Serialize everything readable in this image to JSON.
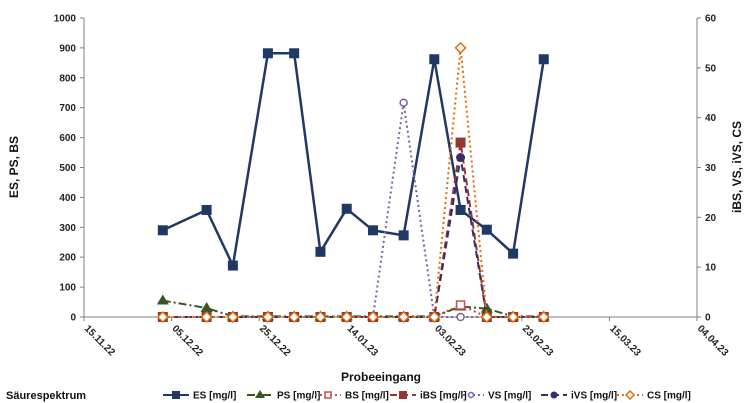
{
  "chart_data": {
    "type": "line",
    "caption": "Säurespektrum",
    "xlabel": "Probeeingang",
    "ylabel": "ES, PS, BS",
    "y2label": "iBS, VS, iVS, CS",
    "xlim": [
      "2022-11-15",
      "2023-04-04"
    ],
    "x_ticks": [
      "15.11.22",
      "05.12.22",
      "25.12.22",
      "14.01.23",
      "03.02.23",
      "23.02.23",
      "15.03.23",
      "04.04.23"
    ],
    "ylim": [
      0,
      1000
    ],
    "y_ticks": [
      0,
      100,
      200,
      300,
      400,
      500,
      600,
      700,
      800,
      900,
      1000
    ],
    "y2lim": [
      0,
      60
    ],
    "y2_ticks": [
      0,
      10,
      20,
      30,
      40,
      50,
      60
    ],
    "grid": false,
    "legend_position": "bottom",
    "series": [
      {
        "name": "ES [mg/l]",
        "axis": "left",
        "color": "#1f3864",
        "marker": "square",
        "dash": "solid",
        "points": [
          [
            "2022-12-03",
            290
          ],
          [
            "2022-12-13",
            358
          ],
          [
            "2022-12-19",
            172
          ],
          [
            "2022-12-27",
            882
          ],
          [
            "2023-01-02",
            882
          ],
          [
            "2023-01-08",
            218
          ],
          [
            "2023-01-14",
            362
          ],
          [
            "2023-01-20",
            290
          ],
          [
            "2023-01-27",
            273
          ],
          [
            "2023-02-03",
            862
          ],
          [
            "2023-02-09",
            358
          ],
          [
            "2023-02-15",
            292
          ],
          [
            "2023-02-21",
            212
          ],
          [
            "2023-02-28",
            862
          ]
        ]
      },
      {
        "name": "PS [mg/l]",
        "axis": "left",
        "color": "#375623",
        "marker": "triangle",
        "dash": "dashdot",
        "points": [
          [
            "2022-12-03",
            55
          ],
          [
            "2022-12-13",
            30
          ],
          [
            "2022-12-19",
            2
          ],
          [
            "2022-12-27",
            2
          ],
          [
            "2023-01-02",
            2
          ],
          [
            "2023-01-08",
            2
          ],
          [
            "2023-01-14",
            2
          ],
          [
            "2023-01-20",
            2
          ],
          [
            "2023-01-27",
            2
          ],
          [
            "2023-02-03",
            2
          ],
          [
            "2023-02-09",
            35
          ],
          [
            "2023-02-15",
            28
          ],
          [
            "2023-02-21",
            2
          ],
          [
            "2023-02-28",
            2
          ]
        ]
      },
      {
        "name": "BS [mg/l]",
        "axis": "left",
        "color": "#c0504d",
        "marker": "square-open",
        "dash": "dotted",
        "points": [
          [
            "2022-12-03",
            0
          ],
          [
            "2022-12-13",
            0
          ],
          [
            "2022-12-19",
            0
          ],
          [
            "2022-12-27",
            0
          ],
          [
            "2023-01-02",
            0
          ],
          [
            "2023-01-08",
            0
          ],
          [
            "2023-01-14",
            0
          ],
          [
            "2023-01-20",
            0
          ],
          [
            "2023-01-27",
            0
          ],
          [
            "2023-02-03",
            0
          ],
          [
            "2023-02-09",
            40
          ],
          [
            "2023-02-15",
            0
          ],
          [
            "2023-02-21",
            0
          ],
          [
            "2023-02-28",
            0
          ]
        ]
      },
      {
        "name": "iBS [mg/l]",
        "axis": "right",
        "color": "#943634",
        "marker": "square",
        "dash": "dashed",
        "points": [
          [
            "2022-12-03",
            0
          ],
          [
            "2022-12-13",
            0
          ],
          [
            "2022-12-19",
            0
          ],
          [
            "2022-12-27",
            0
          ],
          [
            "2023-01-02",
            0
          ],
          [
            "2023-01-08",
            0
          ],
          [
            "2023-01-14",
            0
          ],
          [
            "2023-01-20",
            0
          ],
          [
            "2023-01-27",
            0
          ],
          [
            "2023-02-03",
            0
          ],
          [
            "2023-02-09",
            35
          ],
          [
            "2023-02-15",
            0
          ],
          [
            "2023-02-21",
            0
          ],
          [
            "2023-02-28",
            0
          ]
        ]
      },
      {
        "name": "VS [mg/l]",
        "axis": "right",
        "color": "#7f5fa6",
        "marker": "circle-open",
        "dash": "dotted",
        "points": [
          [
            "2022-12-03",
            0
          ],
          [
            "2022-12-13",
            0
          ],
          [
            "2022-12-19",
            0
          ],
          [
            "2022-12-27",
            0
          ],
          [
            "2023-01-02",
            0
          ],
          [
            "2023-01-08",
            0
          ],
          [
            "2023-01-14",
            0
          ],
          [
            "2023-01-20",
            0
          ],
          [
            "2023-01-27",
            43
          ],
          [
            "2023-02-03",
            0
          ],
          [
            "2023-02-09",
            0
          ],
          [
            "2023-02-15",
            0
          ],
          [
            "2023-02-21",
            0
          ],
          [
            "2023-02-28",
            0
          ]
        ]
      },
      {
        "name": "iVS [mg/l]",
        "axis": "right",
        "color": "#3d2b63",
        "marker": "circle",
        "dash": "dashed",
        "points": [
          [
            "2022-12-03",
            0
          ],
          [
            "2022-12-13",
            0
          ],
          [
            "2022-12-19",
            0
          ],
          [
            "2022-12-27",
            0
          ],
          [
            "2023-01-02",
            0
          ],
          [
            "2023-01-08",
            0
          ],
          [
            "2023-01-14",
            0
          ],
          [
            "2023-01-20",
            0
          ],
          [
            "2023-01-27",
            0
          ],
          [
            "2023-02-03",
            0
          ],
          [
            "2023-02-09",
            32
          ],
          [
            "2023-02-15",
            0
          ],
          [
            "2023-02-21",
            0
          ],
          [
            "2023-02-28",
            0
          ]
        ]
      },
      {
        "name": "CS [mg/l]",
        "axis": "right",
        "color": "#e36c09",
        "marker": "diamond-open",
        "dash": "dotted",
        "points": [
          [
            "2022-12-03",
            0
          ],
          [
            "2022-12-13",
            0
          ],
          [
            "2022-12-19",
            0
          ],
          [
            "2022-12-27",
            0
          ],
          [
            "2023-01-02",
            0
          ],
          [
            "2023-01-08",
            0
          ],
          [
            "2023-01-14",
            0
          ],
          [
            "2023-01-20",
            0
          ],
          [
            "2023-01-27",
            0
          ],
          [
            "2023-02-03",
            0
          ],
          [
            "2023-02-09",
            54
          ],
          [
            "2023-02-15",
            0
          ],
          [
            "2023-02-21",
            0
          ],
          [
            "2023-02-28",
            0
          ]
        ]
      }
    ]
  }
}
